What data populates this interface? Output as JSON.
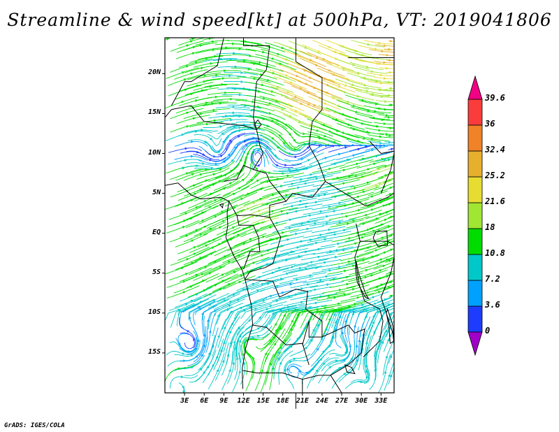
{
  "title": "Streamline & wind speed[kt] at 500hPa, VT: 2019041806",
  "credit": "GrADS: IGES/COLA",
  "map": {
    "lon_range": [
      0,
      35
    ],
    "lat_range": [
      -20,
      24.5
    ],
    "lat_ticks": [
      {
        "value": 20,
        "label": "20N"
      },
      {
        "value": 15,
        "label": "15N"
      },
      {
        "value": 10,
        "label": "10N"
      },
      {
        "value": 5,
        "label": "5N"
      },
      {
        "value": 0,
        "label": "EQ"
      },
      {
        "value": -5,
        "label": "5S"
      },
      {
        "value": -10,
        "label": "10S"
      },
      {
        "value": -15,
        "label": "15S"
      }
    ],
    "lon_ticks": [
      {
        "value": 3,
        "label": "3E"
      },
      {
        "value": 6,
        "label": "6E"
      },
      {
        "value": 9,
        "label": "9E"
      },
      {
        "value": 12,
        "label": "12E"
      },
      {
        "value": 15,
        "label": "15E"
      },
      {
        "value": 18,
        "label": "18E"
      },
      {
        "value": 21,
        "label": "21E"
      },
      {
        "value": 24,
        "label": "24E"
      },
      {
        "value": 27,
        "label": "27E"
      },
      {
        "value": 30,
        "label": "30E"
      },
      {
        "value": 33,
        "label": "33E"
      }
    ]
  },
  "colorbar": {
    "labels": [
      "0",
      "3.6",
      "7.2",
      "10.8",
      "18",
      "21.6",
      "25.2",
      "32.4",
      "36",
      "39.6"
    ],
    "colors": [
      "#a000c8",
      "#1e3cff",
      "#00a0ff",
      "#00c8c8",
      "#00dc00",
      "#a0e632",
      "#e6dc32",
      "#e6af2d",
      "#f08228",
      "#fa3c3c",
      "#f00082"
    ]
  }
}
